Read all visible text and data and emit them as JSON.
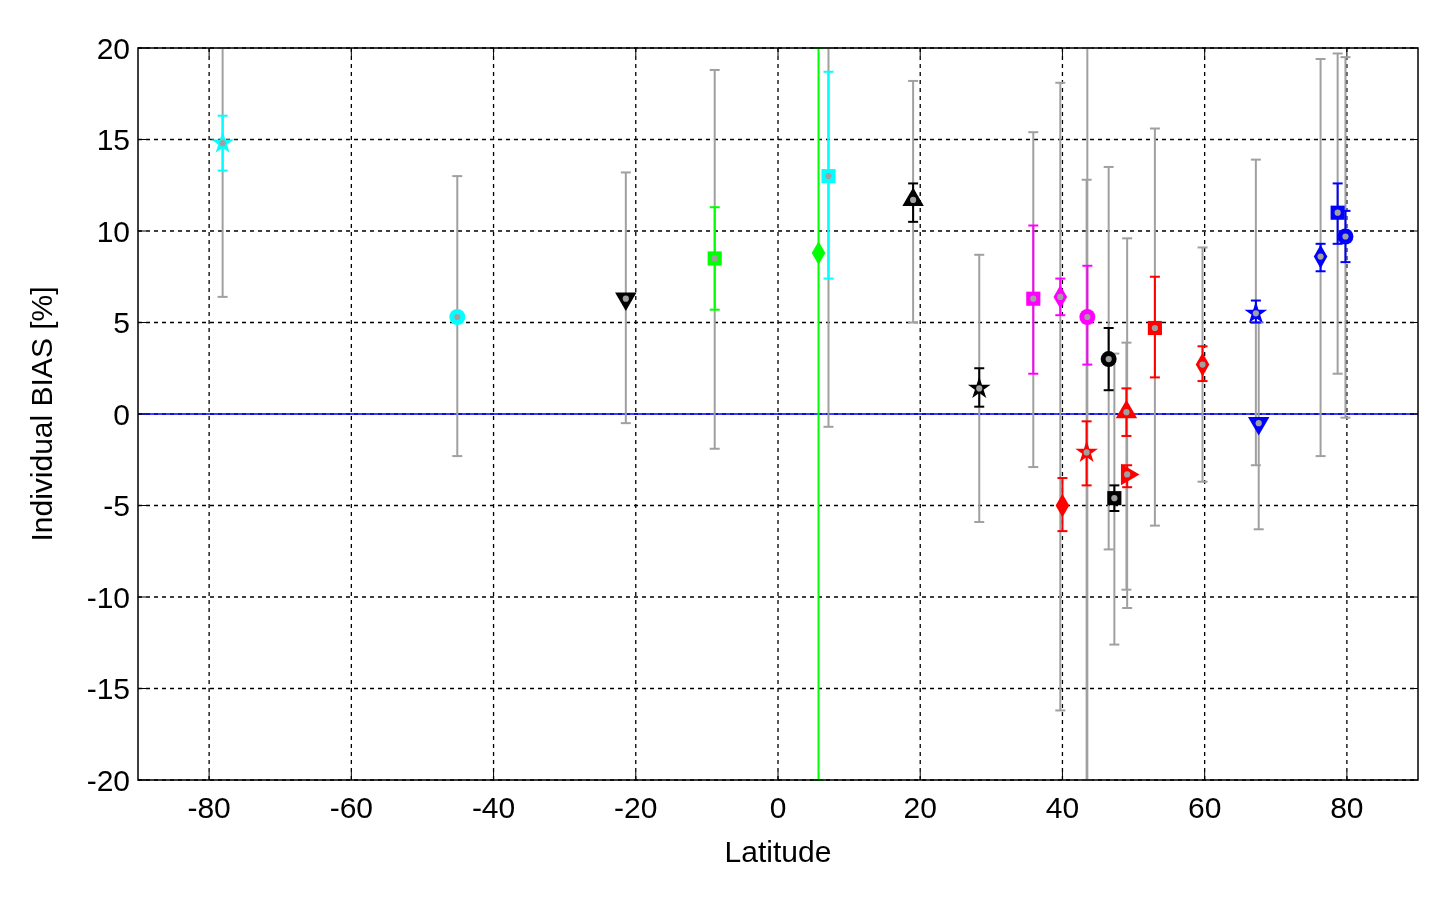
{
  "chart_data": {
    "type": "scatter",
    "xlabel": "Latitude",
    "ylabel": "Individual BIAS [%]",
    "xlim": [
      -90,
      90
    ],
    "xticks": [
      -80,
      -60,
      -40,
      -20,
      0,
      20,
      40,
      60,
      80
    ],
    "ylim": [
      -20,
      20
    ],
    "yticks": [
      -20,
      -15,
      -10,
      -5,
      0,
      5,
      10,
      15,
      20
    ],
    "grid": true,
    "ref_lines": [
      {
        "axis": "y",
        "value": 0,
        "color": "#0000ff"
      }
    ],
    "series": [
      {
        "color": "#a0a0a0",
        "marker": "circle",
        "x": [
          -78.1,
          -45.1,
          -21.4,
          -8.9,
          7.1,
          19.0,
          28.3,
          35.9,
          39.7,
          43.5,
          43.4,
          46.5,
          47.3,
          49.0,
          49.1,
          53.0,
          59.7,
          67.2,
          67.6,
          76.3,
          78.7,
          79.8
        ],
        "values": [
          14.8,
          5.3,
          6.3,
          8.5,
          13.0,
          11.7,
          1.4,
          6.3,
          6.4,
          5.3,
          -2.1,
          3.0,
          -4.6,
          0.1,
          -3.3,
          4.7,
          2.7,
          5.5,
          -0.5,
          8.6,
          11.0,
          9.7
        ],
        "errors": [
          [
            6.4,
            20
          ],
          [
            -2.3,
            13.0
          ],
          [
            -0.5,
            13.2
          ],
          [
            -1.9,
            18.8
          ],
          [
            -0.7,
            20
          ],
          [
            5.0,
            18.2
          ],
          [
            -5.9,
            8.7
          ],
          [
            -2.9,
            15.4
          ],
          [
            -16.2,
            18.1
          ],
          [
            -20,
            20
          ],
          [
            -20,
            12.8
          ],
          [
            -7.4,
            13.5
          ],
          [
            -12.6,
            3.3
          ],
          [
            -9.6,
            3.9
          ],
          [
            -10.6,
            9.6
          ],
          [
            -6.1,
            15.6
          ],
          [
            -3.7,
            9.1
          ],
          [
            -2.8,
            13.9
          ],
          [
            -6.3,
            5.0
          ],
          [
            -2.3,
            19.4
          ],
          [
            2.2,
            19.7
          ],
          [
            -0.2,
            19.5
          ]
        ]
      },
      {
        "color": "#00ffff",
        "marker": "star",
        "x": [
          -78.1
        ],
        "values": [
          14.8
        ],
        "errors": [
          [
            13.3,
            16.3
          ]
        ]
      },
      {
        "color": "#00ffff",
        "marker": "circle",
        "x": [
          -45.1
        ],
        "values": [
          5.3
        ]
      },
      {
        "color": "#000000",
        "marker": "triangle-down",
        "x": [
          -21.4
        ],
        "values": [
          6.3
        ]
      },
      {
        "color": "#00ff00",
        "marker": "square",
        "x": [
          -8.9
        ],
        "values": [
          8.5
        ],
        "errors": [
          [
            5.7,
            11.3
          ]
        ]
      },
      {
        "color": "#00ff00",
        "marker": "diamond",
        "x": [
          5.7
        ],
        "values": [
          8.8
        ],
        "errors": [
          [
            -20,
            20
          ]
        ]
      },
      {
        "color": "#00ffff",
        "marker": "square",
        "x": [
          7.1
        ],
        "values": [
          13.0
        ],
        "errors": [
          [
            7.4,
            18.7
          ]
        ]
      },
      {
        "color": "#000000",
        "marker": "triangle",
        "x": [
          19.0
        ],
        "values": [
          11.7
        ],
        "errors": [
          [
            10.5,
            12.6
          ]
        ]
      },
      {
        "color": "#000000",
        "marker": "star",
        "x": [
          28.3
        ],
        "values": [
          1.4
        ],
        "errors": [
          [
            0.4,
            2.5
          ]
        ]
      },
      {
        "color": "#ff00ff",
        "marker": "square",
        "x": [
          35.9
        ],
        "values": [
          6.3
        ],
        "errors": [
          [
            2.2,
            10.3
          ]
        ]
      },
      {
        "color": "#ff00ff",
        "marker": "diamond",
        "x": [
          39.7
        ],
        "values": [
          6.4
        ],
        "errors": [
          [
            5.4,
            7.4
          ]
        ]
      },
      {
        "color": "#ff0000",
        "marker": "diamond",
        "x": [
          40.0
        ],
        "values": [
          -5.0
        ],
        "errors": [
          [
            -6.4,
            -3.5
          ]
        ]
      },
      {
        "color": "#ff00ff",
        "marker": "circle",
        "x": [
          43.5
        ],
        "values": [
          5.3
        ],
        "errors": [
          [
            2.7,
            8.1
          ]
        ]
      },
      {
        "color": "#ff0000",
        "marker": "star",
        "x": [
          43.4
        ],
        "values": [
          -2.1
        ],
        "errors": [
          [
            -3.9,
            -0.4
          ]
        ]
      },
      {
        "color": "#000000",
        "marker": "circle",
        "x": [
          46.5
        ],
        "values": [
          3.0
        ],
        "errors": [
          [
            1.3,
            4.7
          ]
        ]
      },
      {
        "color": "#000000",
        "marker": "square",
        "x": [
          47.3
        ],
        "values": [
          -4.6
        ],
        "errors": [
          [
            -5.3,
            -3.9
          ]
        ]
      },
      {
        "color": "#ff0000",
        "marker": "triangle",
        "x": [
          49.0
        ],
        "values": [
          0.1
        ],
        "errors": [
          [
            -1.2,
            1.4
          ]
        ]
      },
      {
        "color": "#ff0000",
        "marker": "triangle-right",
        "x": [
          49.1
        ],
        "values": [
          -3.3
        ],
        "errors": [
          [
            -4.0,
            -2.8
          ]
        ]
      },
      {
        "color": "#ff0000",
        "marker": "square",
        "x": [
          53.0
        ],
        "values": [
          4.7
        ],
        "errors": [
          [
            2.0,
            7.5
          ]
        ]
      },
      {
        "color": "#ff0000",
        "marker": "diamond",
        "x": [
          59.7
        ],
        "values": [
          2.7
        ],
        "errors": [
          [
            1.8,
            3.7
          ]
        ]
      },
      {
        "color": "#0000ff",
        "marker": "star",
        "x": [
          67.2
        ],
        "values": [
          5.5
        ],
        "errors": [
          [
            5.0,
            6.2
          ]
        ]
      },
      {
        "color": "#0000ff",
        "marker": "triangle-down",
        "x": [
          67.6
        ],
        "values": [
          -0.5
        ]
      },
      {
        "color": "#0000ff",
        "marker": "diamond",
        "x": [
          76.3
        ],
        "values": [
          8.6
        ],
        "errors": [
          [
            7.8,
            9.3
          ]
        ]
      },
      {
        "color": "#0000ff",
        "marker": "square",
        "x": [
          78.7
        ],
        "values": [
          11.0
        ],
        "errors": [
          [
            9.3,
            12.6
          ]
        ]
      },
      {
        "color": "#0000ff",
        "marker": "circle",
        "x": [
          79.8
        ],
        "values": [
          9.7
        ],
        "errors": [
          [
            8.3,
            11.1
          ]
        ]
      }
    ]
  }
}
